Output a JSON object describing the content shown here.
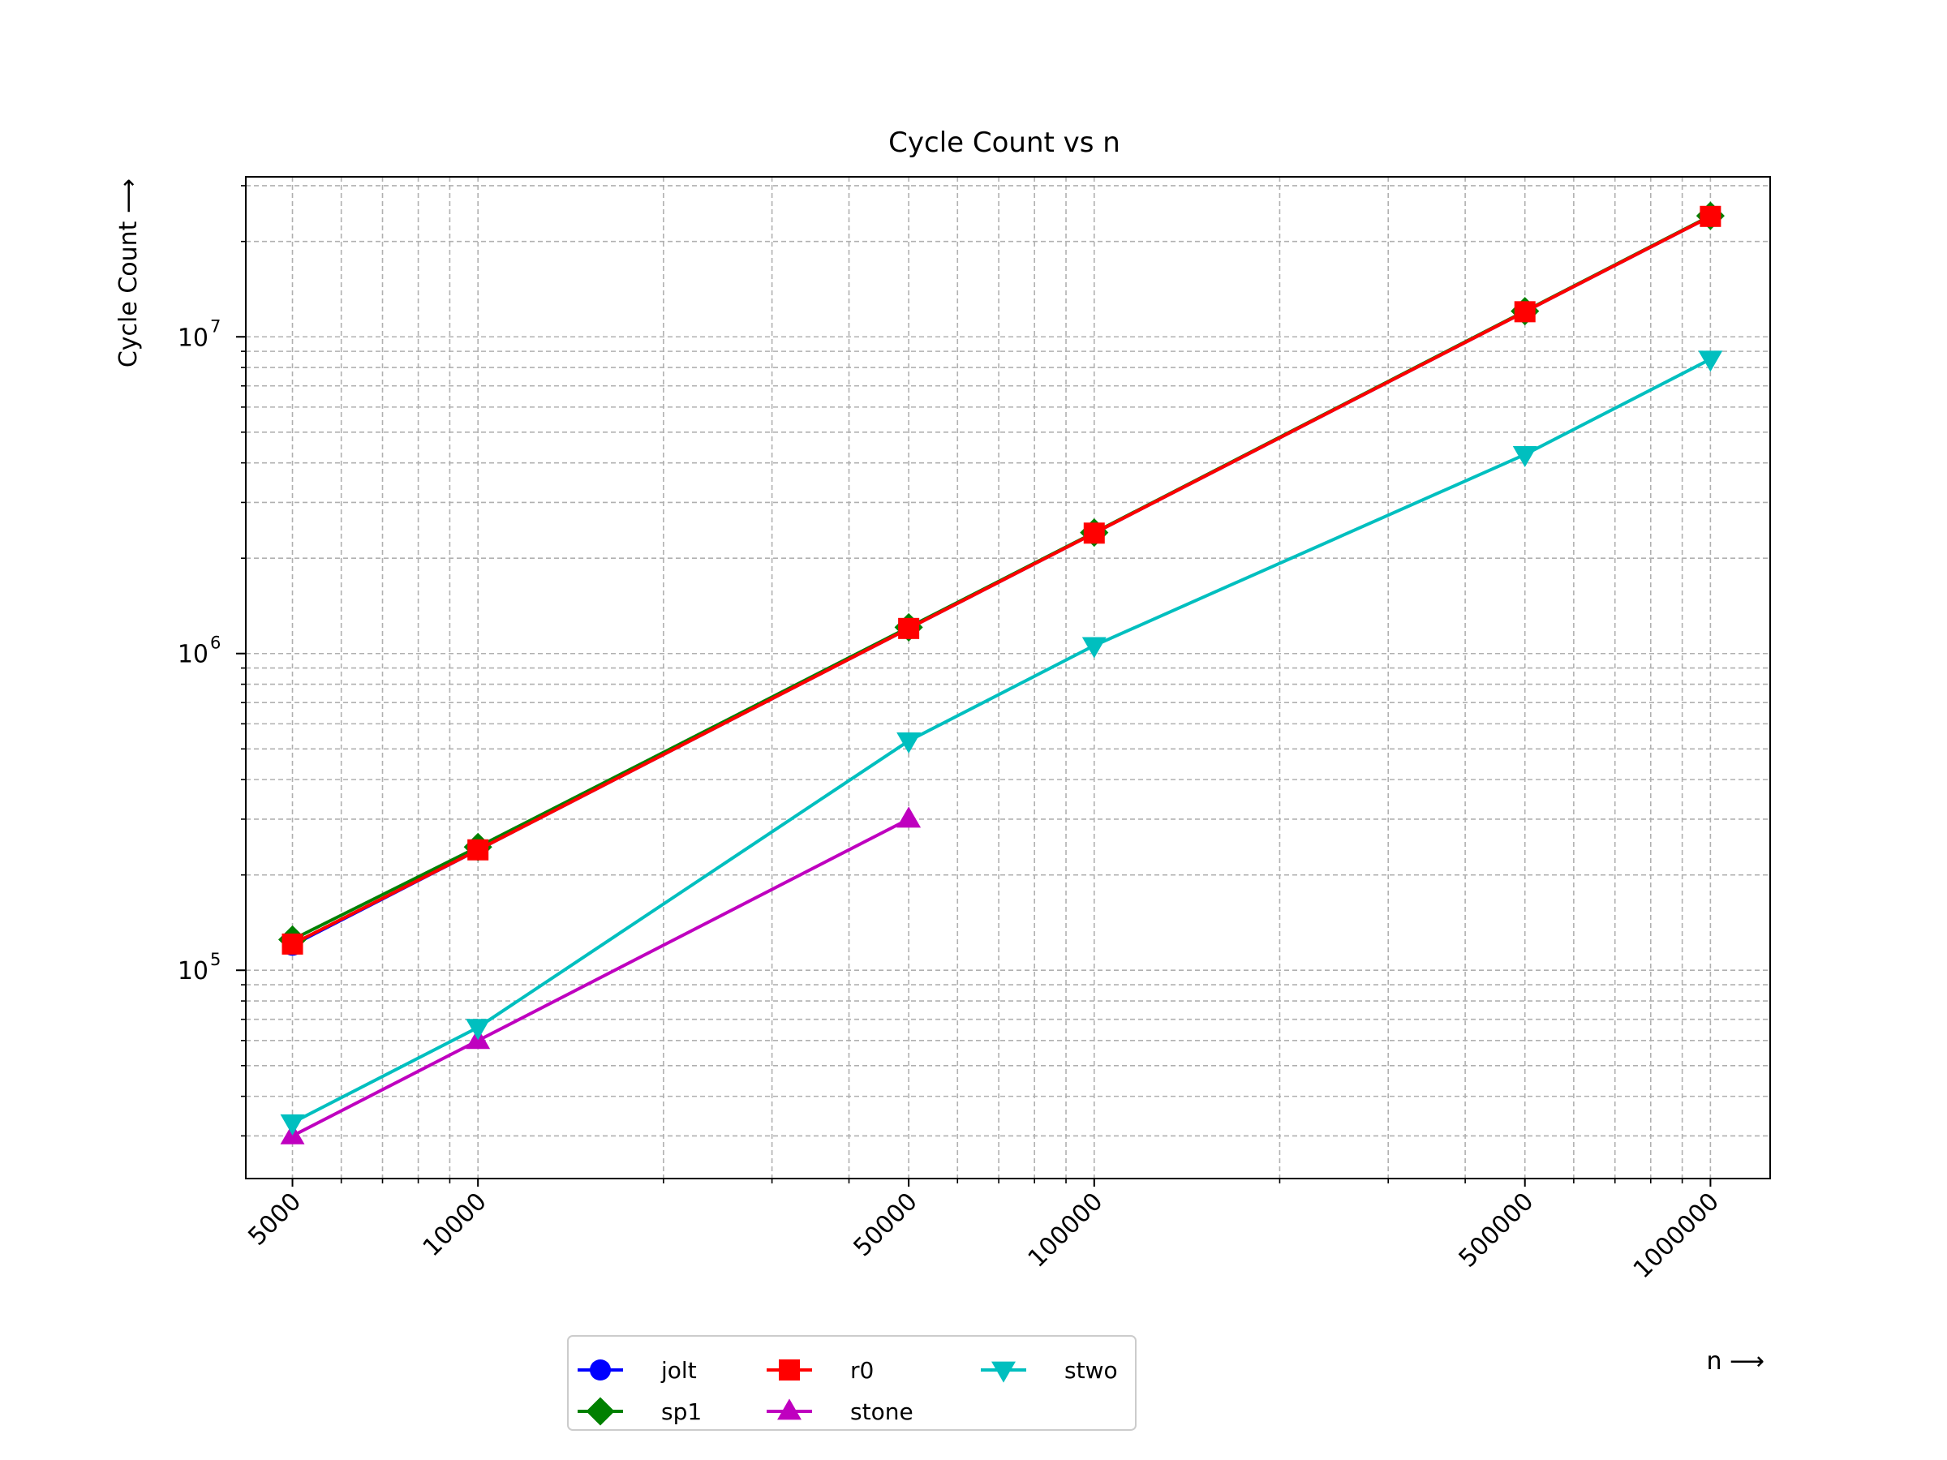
{
  "chart_data": {
    "type": "line",
    "title": "Cycle Count vs n",
    "xlabel": "n ⟶",
    "ylabel": "Cycle Count ⟶",
    "x_scale": "log",
    "y_scale": "log",
    "xlim": [
      4200,
      1250000
    ],
    "ylim": [
      22000,
      32000000
    ],
    "x_ticks": [
      5000,
      10000,
      50000,
      100000,
      500000,
      1000000
    ],
    "x_tick_labels": [
      "5000",
      "10000",
      "50000",
      "100000",
      "500000",
      "1000000"
    ],
    "y_ticks": [
      100000,
      1000000,
      10000000
    ],
    "y_tick_labels": [
      {
        "base": "10",
        "exp": "5"
      },
      {
        "base": "10",
        "exp": "6"
      },
      {
        "base": "10",
        "exp": "7"
      }
    ],
    "grid": true,
    "legend_position": "below",
    "series": [
      {
        "name": "jolt",
        "color": "#0000ff",
        "marker": "circle",
        "points": [
          [
            5000,
            120000
          ],
          [
            10000,
            240000
          ],
          [
            50000,
            1200000
          ],
          [
            100000,
            2400000
          ],
          [
            500000,
            12000000
          ],
          [
            1000000,
            24000000
          ]
        ]
      },
      {
        "name": "sp1",
        "color": "#008000",
        "marker": "diamond",
        "points": [
          [
            5000,
            125000
          ],
          [
            10000,
            245000
          ],
          [
            50000,
            1210000
          ],
          [
            100000,
            2410000
          ],
          [
            500000,
            12050000
          ],
          [
            1000000,
            24100000
          ]
        ]
      },
      {
        "name": "r0",
        "color": "#ff0000",
        "marker": "square",
        "points": [
          [
            5000,
            121000
          ],
          [
            10000,
            240000
          ],
          [
            50000,
            1200000
          ],
          [
            100000,
            2400000
          ],
          [
            500000,
            12000000
          ],
          [
            1000000,
            24000000
          ]
        ]
      },
      {
        "name": "stone",
        "color": "#bf00bf",
        "marker": "triangle-up",
        "points": [
          [
            5000,
            30000
          ],
          [
            10000,
            60000
          ],
          [
            50000,
            300000
          ]
        ]
      },
      {
        "name": "stwo",
        "color": "#00bfbf",
        "marker": "triangle-down",
        "points": [
          [
            5000,
            33000
          ],
          [
            10000,
            66000
          ],
          [
            50000,
            530000
          ],
          [
            100000,
            1060000
          ],
          [
            500000,
            4250000
          ],
          [
            1000000,
            8500000
          ]
        ]
      }
    ]
  }
}
